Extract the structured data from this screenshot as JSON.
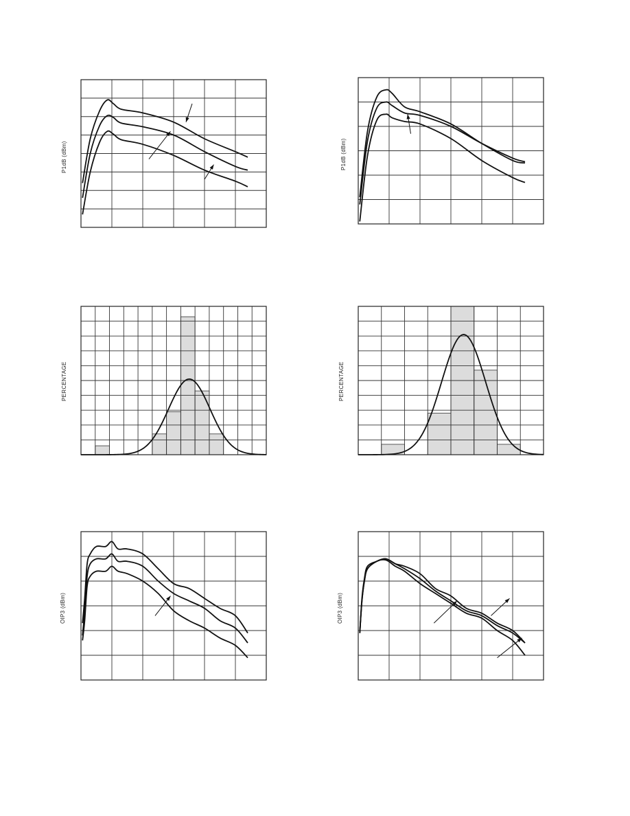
{
  "chart_data": [
    {
      "id": "p1db-left",
      "type": "line",
      "ylabel": "P1dB (dBm)",
      "grid": {
        "xdiv": 6,
        "ydiv": 8
      },
      "xlim": [
        0,
        6
      ],
      "ylim": [
        0,
        8
      ],
      "series": [
        {
          "values": [
            [
              0.05,
              2.4
            ],
            [
              0.3,
              4.8
            ],
            [
              0.6,
              6.3
            ],
            [
              0.85,
              6.9
            ],
            [
              1.05,
              6.7
            ],
            [
              1.3,
              6.4
            ],
            [
              2,
              6.2
            ],
            [
              3,
              5.7
            ],
            [
              4,
              4.8
            ],
            [
              5,
              4.1
            ],
            [
              5.4,
              3.8
            ]
          ]
        },
        {
          "values": [
            [
              0.05,
              1.6
            ],
            [
              0.3,
              4.0
            ],
            [
              0.6,
              5.5
            ],
            [
              0.85,
              6.05
            ],
            [
              1.05,
              5.95
            ],
            [
              1.3,
              5.65
            ],
            [
              2,
              5.45
            ],
            [
              3,
              5.0
            ],
            [
              4,
              4.1
            ],
            [
              5,
              3.3
            ],
            [
              5.4,
              3.1
            ]
          ]
        },
        {
          "values": [
            [
              0.05,
              0.7
            ],
            [
              0.3,
              3.0
            ],
            [
              0.6,
              4.6
            ],
            [
              0.85,
              5.2
            ],
            [
              1.05,
              5.05
            ],
            [
              1.3,
              4.75
            ],
            [
              2,
              4.5
            ],
            [
              3,
              3.9
            ],
            [
              4,
              3.1
            ],
            [
              5,
              2.5
            ],
            [
              5.4,
              2.2
            ]
          ]
        }
      ],
      "arrows": [
        [
          [
            3.6,
            6.7
          ],
          [
            3.4,
            5.7
          ]
        ],
        [
          [
            2.2,
            3.7
          ],
          [
            2.9,
            5.2
          ]
        ],
        [
          [
            4.0,
            2.6
          ],
          [
            4.3,
            3.4
          ]
        ]
      ]
    },
    {
      "id": "p1db-right",
      "type": "line",
      "ylabel": "P1dB (dBm)",
      "grid": {
        "xdiv": 6,
        "ydiv": 6
      },
      "xlim": [
        0,
        6
      ],
      "ylim": [
        0,
        6
      ],
      "series": [
        {
          "values": [
            [
              0.05,
              1.1
            ],
            [
              0.3,
              3.8
            ],
            [
              0.6,
              5.2
            ],
            [
              0.9,
              5.5
            ],
            [
              1.1,
              5.35
            ],
            [
              1.5,
              4.8
            ],
            [
              2,
              4.6
            ],
            [
              3,
              4.1
            ],
            [
              4,
              3.3
            ],
            [
              5,
              2.6
            ],
            [
              5.4,
              2.5
            ]
          ]
        },
        {
          "values": [
            [
              0.05,
              0.8
            ],
            [
              0.3,
              3.4
            ],
            [
              0.6,
              4.75
            ],
            [
              0.9,
              5.0
            ],
            [
              1.1,
              4.85
            ],
            [
              1.5,
              4.55
            ],
            [
              2,
              4.45
            ],
            [
              3,
              4.0
            ],
            [
              4,
              3.3
            ],
            [
              5,
              2.7
            ],
            [
              5.4,
              2.55
            ]
          ]
        },
        {
          "values": [
            [
              0.05,
              0.1
            ],
            [
              0.3,
              2.8
            ],
            [
              0.6,
              4.25
            ],
            [
              0.9,
              4.5
            ],
            [
              1.1,
              4.35
            ],
            [
              1.5,
              4.2
            ],
            [
              2,
              4.1
            ],
            [
              3,
              3.5
            ],
            [
              4,
              2.6
            ],
            [
              5,
              1.9
            ],
            [
              5.4,
              1.7
            ]
          ]
        }
      ],
      "arrows": [
        [
          [
            1.7,
            3.7
          ],
          [
            1.6,
            4.5
          ]
        ]
      ]
    },
    {
      "id": "hist-left",
      "type": "bar",
      "ylabel": "PERCENTAGE",
      "grid": {
        "xdiv": 13,
        "ydiv": 10
      },
      "xlim": [
        0,
        13
      ],
      "ylim": [
        0,
        10
      ],
      "bars": [
        [
          1,
          2,
          0.6
        ],
        [
          5,
          6,
          1.4
        ],
        [
          6,
          7,
          2.9
        ],
        [
          7,
          8,
          9.3
        ],
        [
          8,
          9,
          4.3
        ],
        [
          9,
          10,
          1.4
        ]
      ],
      "curve": {
        "mean": 7.6,
        "sd": 1.45,
        "peak": 5.1
      }
    },
    {
      "id": "hist-right",
      "type": "bar",
      "ylabel": "PERCENTAGE",
      "grid": {
        "xdiv": 8,
        "ydiv": 10
      },
      "xlim": [
        0,
        8
      ],
      "ylim": [
        0,
        10
      ],
      "bars": [
        [
          1,
          2,
          0.7
        ],
        [
          3,
          4,
          2.8
        ],
        [
          4,
          5,
          10
        ],
        [
          5,
          6,
          5.7
        ],
        [
          6,
          7,
          0.7
        ]
      ],
      "curve": {
        "mean": 4.55,
        "sd": 0.95,
        "peak": 8.1
      }
    },
    {
      "id": "oip3-left",
      "type": "line",
      "ylabel": "OIP3 (dBm)",
      "grid": {
        "xdiv": 6,
        "ydiv": 6
      },
      "xlim": [
        0,
        6
      ],
      "ylim": [
        0,
        6
      ],
      "series": [
        {
          "values": [
            [
              0.05,
              2.3
            ],
            [
              0.12,
              3.3
            ],
            [
              0.2,
              4.7
            ],
            [
              0.3,
              5.1
            ],
            [
              0.5,
              5.4
            ],
            [
              0.8,
              5.4
            ],
            [
              1.0,
              5.6
            ],
            [
              1.2,
              5.3
            ],
            [
              1.5,
              5.3
            ],
            [
              2.0,
              5.1
            ],
            [
              2.5,
              4.5
            ],
            [
              3,
              3.9
            ],
            [
              3.5,
              3.7
            ],
            [
              4,
              3.3
            ],
            [
              4.5,
              2.9
            ],
            [
              5,
              2.6
            ],
            [
              5.4,
              1.9
            ]
          ]
        },
        {
          "values": [
            [
              0.05,
              1.8
            ],
            [
              0.12,
              2.8
            ],
            [
              0.2,
              4.2
            ],
            [
              0.3,
              4.7
            ],
            [
              0.5,
              4.9
            ],
            [
              0.8,
              4.9
            ],
            [
              1.0,
              5.1
            ],
            [
              1.2,
              4.8
            ],
            [
              1.5,
              4.8
            ],
            [
              2.0,
              4.6
            ],
            [
              2.5,
              4.0
            ],
            [
              3,
              3.5
            ],
            [
              3.5,
              3.2
            ],
            [
              4,
              2.9
            ],
            [
              4.5,
              2.4
            ],
            [
              5,
              2.1
            ],
            [
              5.4,
              1.5
            ]
          ]
        },
        {
          "values": [
            [
              0.05,
              1.6
            ],
            [
              0.12,
              2.4
            ],
            [
              0.2,
              3.8
            ],
            [
              0.3,
              4.2
            ],
            [
              0.5,
              4.4
            ],
            [
              0.8,
              4.4
            ],
            [
              1.0,
              4.6
            ],
            [
              1.2,
              4.4
            ],
            [
              1.5,
              4.3
            ],
            [
              2.0,
              4.0
            ],
            [
              2.5,
              3.5
            ],
            [
              3,
              2.8
            ],
            [
              3.5,
              2.4
            ],
            [
              4,
              2.1
            ],
            [
              4.5,
              1.7
            ],
            [
              5,
              1.4
            ],
            [
              5.4,
              0.9
            ]
          ]
        }
      ],
      "arrows": [
        [
          [
            2.4,
            2.6
          ],
          [
            2.9,
            3.4
          ]
        ]
      ]
    },
    {
      "id": "oip3-right",
      "type": "line",
      "ylabel": "OIP3 (dBm)",
      "grid": {
        "xdiv": 6,
        "ydiv": 6
      },
      "xlim": [
        0,
        6
      ],
      "ylim": [
        0,
        6
      ],
      "series": [
        {
          "values": [
            [
              0.05,
              1.9
            ],
            [
              0.12,
              3.3
            ],
            [
              0.2,
              4.1
            ],
            [
              0.3,
              4.6
            ],
            [
              0.6,
              4.8
            ],
            [
              0.9,
              4.9
            ],
            [
              1.2,
              4.7
            ],
            [
              1.5,
              4.6
            ],
            [
              2,
              4.3
            ],
            [
              2.5,
              3.7
            ],
            [
              3,
              3.4
            ],
            [
              3.5,
              2.9
            ],
            [
              4,
              2.7
            ],
            [
              4.5,
              2.3
            ],
            [
              5,
              2.0
            ],
            [
              5.4,
              1.5
            ]
          ]
        },
        {
          "values": [
            [
              0.05,
              1.9
            ],
            [
              0.12,
              3.2
            ],
            [
              0.2,
              4.0
            ],
            [
              0.3,
              4.5
            ],
            [
              0.6,
              4.8
            ],
            [
              0.9,
              4.9
            ],
            [
              1.2,
              4.7
            ],
            [
              1.5,
              4.5
            ],
            [
              2,
              4.1
            ],
            [
              2.5,
              3.6
            ],
            [
              3,
              3.2
            ],
            [
              3.5,
              2.8
            ],
            [
              4,
              2.6
            ],
            [
              4.5,
              2.2
            ],
            [
              5,
              1.9
            ],
            [
              5.4,
              1.5
            ]
          ]
        },
        {
          "values": [
            [
              0.05,
              1.9
            ],
            [
              0.12,
              3.2
            ],
            [
              0.2,
              4.0
            ],
            [
              0.3,
              4.5
            ],
            [
              0.6,
              4.8
            ],
            [
              0.9,
              4.85
            ],
            [
              1.2,
              4.6
            ],
            [
              1.5,
              4.4
            ],
            [
              2,
              3.9
            ],
            [
              2.5,
              3.5
            ],
            [
              3,
              3.1
            ],
            [
              3.5,
              2.7
            ],
            [
              4,
              2.5
            ],
            [
              4.5,
              2.0
            ],
            [
              5,
              1.6
            ],
            [
              5.4,
              1.0
            ]
          ]
        }
      ],
      "arrows": [
        [
          [
            2.45,
            2.3
          ],
          [
            3.2,
            3.2
          ]
        ],
        [
          [
            4.3,
            2.6
          ],
          [
            4.9,
            3.3
          ]
        ],
        [
          [
            4.5,
            0.9
          ],
          [
            5.3,
            1.7
          ]
        ]
      ]
    }
  ]
}
